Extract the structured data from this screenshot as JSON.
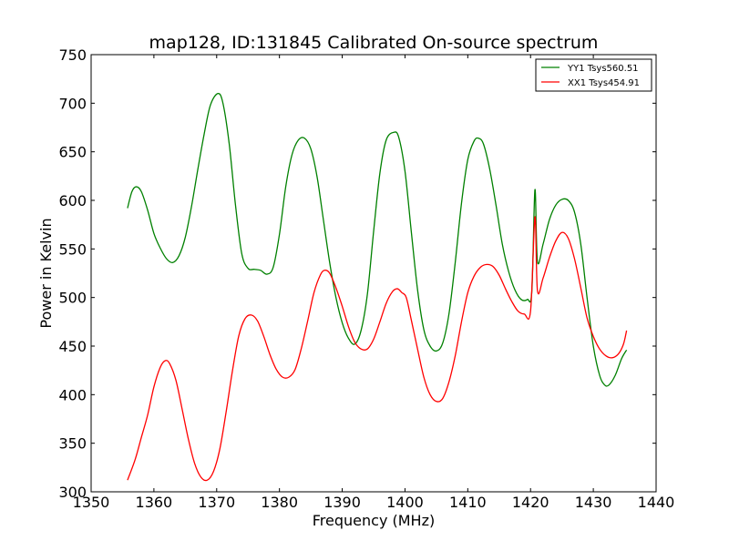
{
  "chart_data": {
    "type": "line",
    "title": "map128, ID:131845 Calibrated On-source spectrum",
    "xlabel": "Frequency (MHz)",
    "ylabel": "Power in Kelvin",
    "xlim": [
      1350,
      1440
    ],
    "ylim": [
      300,
      750
    ],
    "xticks": [
      1350,
      1360,
      1370,
      1380,
      1390,
      1400,
      1410,
      1420,
      1430,
      1440
    ],
    "yticks": [
      300,
      350,
      400,
      450,
      500,
      550,
      600,
      650,
      700,
      750
    ],
    "grid": false,
    "legend_position": "top-right",
    "series": [
      {
        "name": "YY1 Tsys560.51",
        "color": "#008000",
        "points": [
          [
            1355.8,
            592
          ],
          [
            1356.5,
            609
          ],
          [
            1357.2,
            614
          ],
          [
            1358.0,
            609
          ],
          [
            1359.0,
            590
          ],
          [
            1360.0,
            566
          ],
          [
            1361.0,
            551
          ],
          [
            1362.0,
            540
          ],
          [
            1363.0,
            536
          ],
          [
            1364.0,
            543
          ],
          [
            1365.0,
            562
          ],
          [
            1366.0,
            594
          ],
          [
            1367.0,
            632
          ],
          [
            1368.0,
            668
          ],
          [
            1369.0,
            698
          ],
          [
            1370.2,
            710
          ],
          [
            1371.0,
            700
          ],
          [
            1372.0,
            658
          ],
          [
            1373.0,
            595
          ],
          [
            1374.0,
            545
          ],
          [
            1375.0,
            530
          ],
          [
            1376.0,
            529
          ],
          [
            1377.0,
            528
          ],
          [
            1378.0,
            524
          ],
          [
            1379.0,
            531
          ],
          [
            1380.0,
            565
          ],
          [
            1381.0,
            614
          ],
          [
            1382.0,
            647
          ],
          [
            1383.0,
            662
          ],
          [
            1384.0,
            664
          ],
          [
            1385.0,
            653
          ],
          [
            1386.0,
            624
          ],
          [
            1387.0,
            580
          ],
          [
            1388.0,
            536
          ],
          [
            1389.0,
            500
          ],
          [
            1390.0,
            474
          ],
          [
            1391.0,
            458
          ],
          [
            1392.0,
            452
          ],
          [
            1393.0,
            466
          ],
          [
            1394.0,
            503
          ],
          [
            1395.0,
            568
          ],
          [
            1396.0,
            628
          ],
          [
            1397.0,
            662
          ],
          [
            1398.2,
            670
          ],
          [
            1399.0,
            665
          ],
          [
            1400.0,
            630
          ],
          [
            1401.0,
            568
          ],
          [
            1402.0,
            508
          ],
          [
            1403.0,
            467
          ],
          [
            1404.0,
            450
          ],
          [
            1405.0,
            445
          ],
          [
            1406.0,
            453
          ],
          [
            1407.0,
            483
          ],
          [
            1408.0,
            536
          ],
          [
            1409.0,
            597
          ],
          [
            1410.0,
            642
          ],
          [
            1411.0,
            661
          ],
          [
            1411.7,
            664
          ],
          [
            1412.5,
            658
          ],
          [
            1413.5,
            632
          ],
          [
            1414.5,
            595
          ],
          [
            1415.5,
            555
          ],
          [
            1416.5,
            527
          ],
          [
            1417.5,
            508
          ],
          [
            1418.5,
            498
          ],
          [
            1419.5,
            498
          ],
          [
            1420.2,
            506
          ],
          [
            1420.7,
            611
          ],
          [
            1421.1,
            537
          ],
          [
            1422.0,
            555
          ],
          [
            1423.0,
            580
          ],
          [
            1424.0,
            595
          ],
          [
            1425.0,
            601
          ],
          [
            1426.0,
            600
          ],
          [
            1427.0,
            588
          ],
          [
            1428.0,
            555
          ],
          [
            1429.0,
            500
          ],
          [
            1430.0,
            450
          ],
          [
            1431.0,
            420
          ],
          [
            1431.8,
            410
          ],
          [
            1432.5,
            410
          ],
          [
            1433.5,
            420
          ],
          [
            1434.5,
            437
          ],
          [
            1435.3,
            446
          ]
        ]
      },
      {
        "name": "XX1 Tsys454.91",
        "color": "#ff0000",
        "points": [
          [
            1355.8,
            312
          ],
          [
            1357.0,
            333
          ],
          [
            1358.0,
            356
          ],
          [
            1359.0,
            379
          ],
          [
            1360.0,
            408
          ],
          [
            1361.0,
            428
          ],
          [
            1361.8,
            435
          ],
          [
            1362.5,
            432
          ],
          [
            1363.5,
            415
          ],
          [
            1364.5,
            385
          ],
          [
            1365.5,
            354
          ],
          [
            1366.5,
            329
          ],
          [
            1367.5,
            315
          ],
          [
            1368.5,
            312
          ],
          [
            1369.5,
            321
          ],
          [
            1370.5,
            344
          ],
          [
            1371.5,
            382
          ],
          [
            1372.5,
            424
          ],
          [
            1373.5,
            460
          ],
          [
            1374.5,
            478
          ],
          [
            1375.5,
            482
          ],
          [
            1376.5,
            476
          ],
          [
            1377.5,
            460
          ],
          [
            1378.5,
            441
          ],
          [
            1379.5,
            426
          ],
          [
            1380.5,
            418
          ],
          [
            1381.5,
            418
          ],
          [
            1382.5,
            426
          ],
          [
            1383.5,
            448
          ],
          [
            1384.5,
            476
          ],
          [
            1385.5,
            505
          ],
          [
            1386.5,
            523
          ],
          [
            1387.2,
            528
          ],
          [
            1388.0,
            525
          ],
          [
            1389.0,
            510
          ],
          [
            1390.0,
            491
          ],
          [
            1391.0,
            470
          ],
          [
            1392.0,
            454
          ],
          [
            1393.0,
            447
          ],
          [
            1394.0,
            447
          ],
          [
            1395.0,
            457
          ],
          [
            1396.0,
            475
          ],
          [
            1397.0,
            494
          ],
          [
            1398.0,
            506
          ],
          [
            1398.8,
            509
          ],
          [
            1399.5,
            505
          ],
          [
            1400.2,
            500
          ],
          [
            1401.0,
            477
          ],
          [
            1402.0,
            447
          ],
          [
            1403.0,
            418
          ],
          [
            1404.0,
            400
          ],
          [
            1405.0,
            393
          ],
          [
            1406.0,
            396
          ],
          [
            1407.0,
            413
          ],
          [
            1408.0,
            440
          ],
          [
            1409.0,
            475
          ],
          [
            1410.0,
            505
          ],
          [
            1411.0,
            522
          ],
          [
            1412.0,
            531
          ],
          [
            1413.0,
            534
          ],
          [
            1414.0,
            532
          ],
          [
            1415.0,
            523
          ],
          [
            1416.0,
            509
          ],
          [
            1417.0,
            496
          ],
          [
            1418.0,
            486
          ],
          [
            1419.0,
            483
          ],
          [
            1420.0,
            486
          ],
          [
            1420.7,
            583
          ],
          [
            1421.1,
            507
          ],
          [
            1422.0,
            520
          ],
          [
            1423.0,
            541
          ],
          [
            1424.0,
            558
          ],
          [
            1425.0,
            567
          ],
          [
            1426.0,
            561
          ],
          [
            1427.0,
            540
          ],
          [
            1428.0,
            510
          ],
          [
            1429.0,
            479
          ],
          [
            1430.0,
            460
          ],
          [
            1431.0,
            447
          ],
          [
            1432.0,
            440
          ],
          [
            1433.0,
            438
          ],
          [
            1434.0,
            442
          ],
          [
            1434.8,
            452
          ],
          [
            1435.3,
            466
          ]
        ]
      }
    ]
  }
}
